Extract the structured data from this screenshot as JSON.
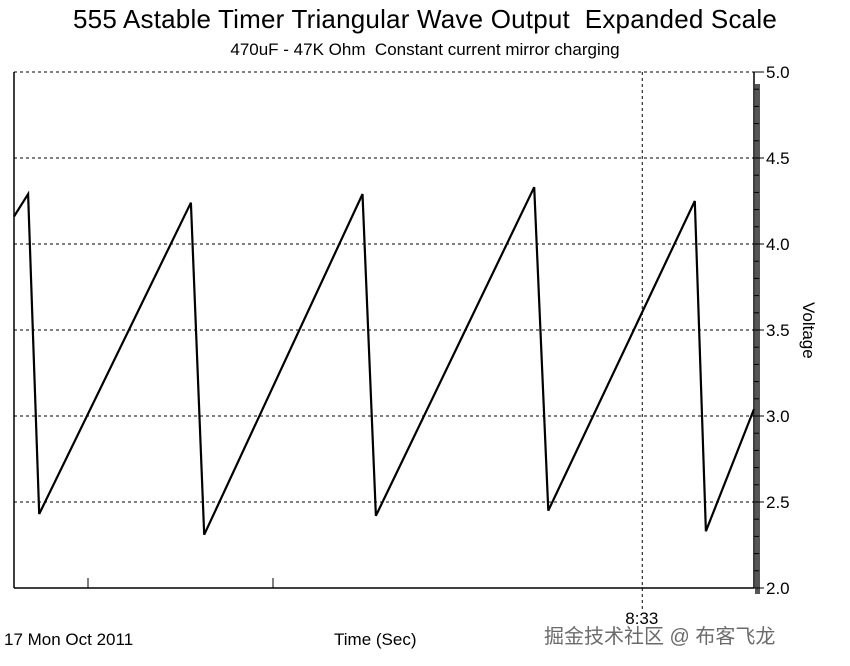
{
  "chart_data": {
    "type": "line",
    "title": "555 Astable Timer Triangular Wave Output  Expanded Scale",
    "subtitle": "470uF - 47K Ohm  Constant current mirror charging",
    "xlabel": "Time (Sec)",
    "ylabel": "Voltage",
    "date_label": "17 Mon Oct 2011",
    "cursor_time_label": "8:33",
    "xlim": [
      0,
      100
    ],
    "ylim": [
      2.0,
      5.0
    ],
    "y_ticks": [
      "2.0",
      "2.5",
      "3.0",
      "3.5",
      "4.0",
      "4.5",
      "5.0"
    ],
    "y_tick_values": [
      2.0,
      2.5,
      3.0,
      3.5,
      4.0,
      4.5,
      5.0
    ],
    "grid": true,
    "cursor_x": 84.9,
    "series": [
      {
        "name": "Voltage",
        "x": [
          0,
          1.9,
          3.4,
          23.9,
          25.7,
          47.1,
          48.9,
          70.3,
          72.2,
          92.0,
          93.5,
          100
        ],
        "y": [
          4.16,
          4.29,
          2.43,
          4.24,
          2.31,
          4.29,
          2.42,
          4.33,
          2.45,
          4.25,
          2.33,
          3.04
        ]
      }
    ]
  },
  "watermark": "掘金技术社区 @ 布客飞龙"
}
